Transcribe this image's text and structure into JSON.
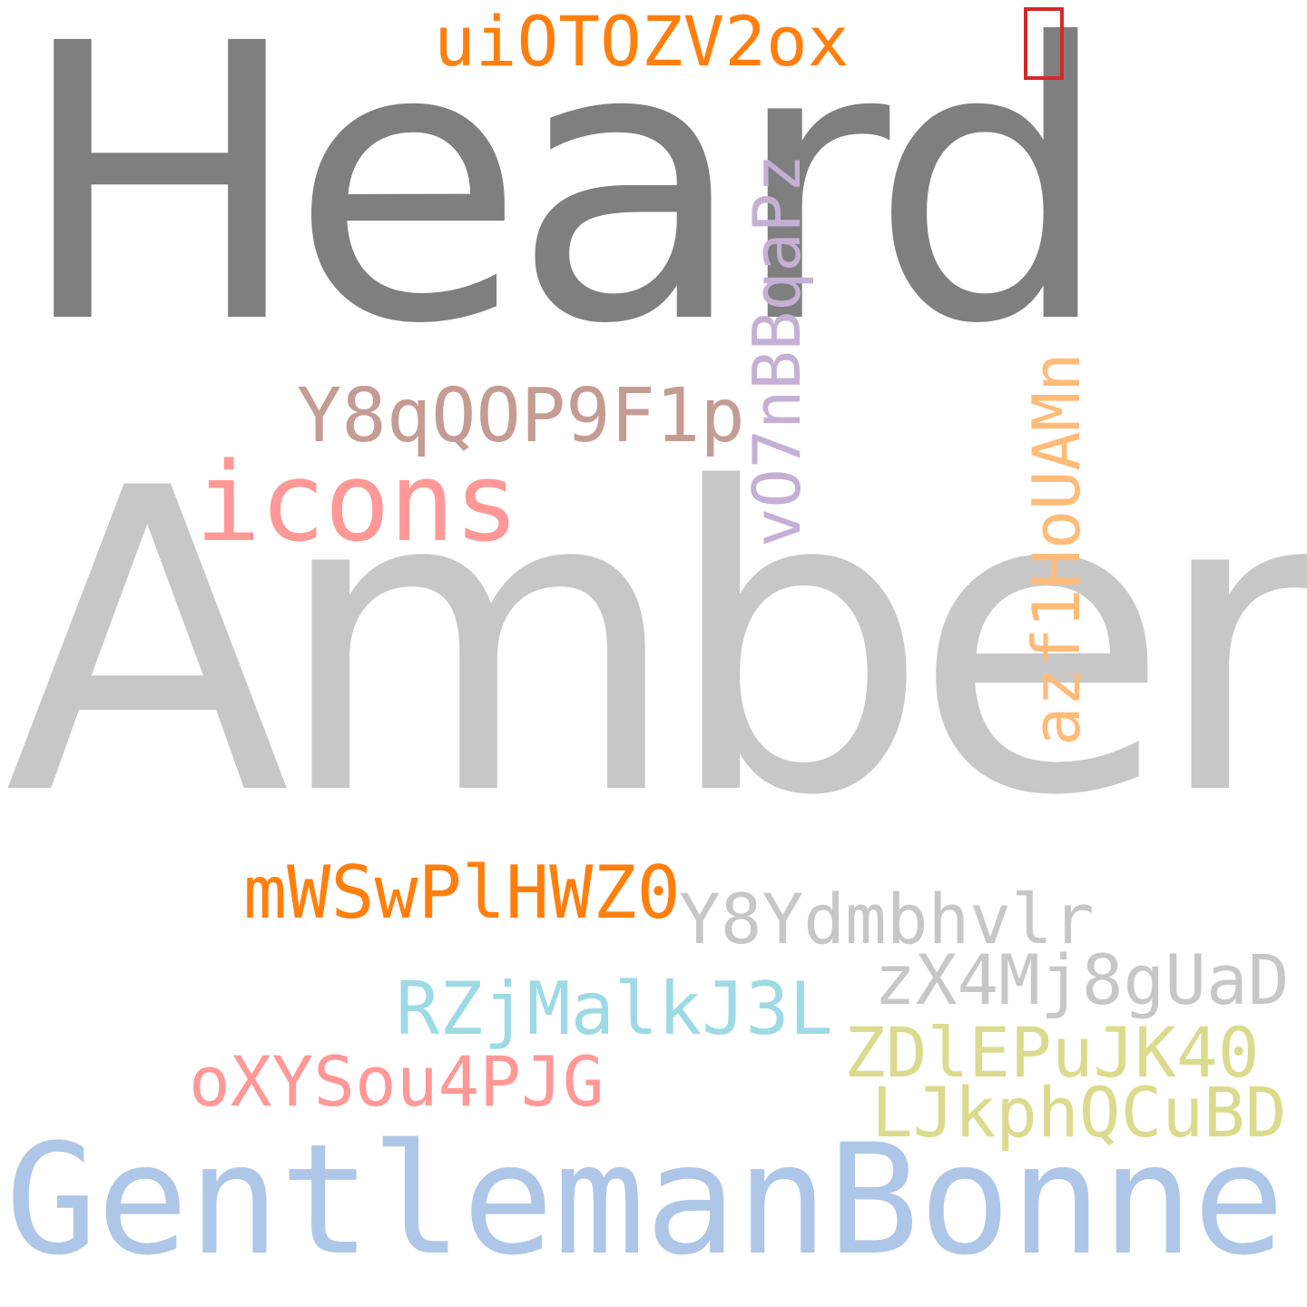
{
  "canvas": {
    "background": "#ffffff"
  },
  "words": {
    "heard": {
      "text": "Heard",
      "color": "#7f7f7f"
    },
    "amber": {
      "text": "Amber",
      "color": "#c7c7c7"
    },
    "gentleman": {
      "text": "GentlemanBonner",
      "color": "#aec7e8"
    },
    "icons": {
      "text": "icons",
      "color": "#ff9896"
    },
    "ui": {
      "text": "uiOTOZV2ox",
      "color": "#ff7f0e"
    },
    "y8q": {
      "text": "Y8qQOP9F1p",
      "color": "#c49c94"
    },
    "vbb": {
      "text": "vO7nBBqaPz",
      "color": "#c5b0d5"
    },
    "azf": {
      "text": "azf1HoUAMn",
      "color": "#ffbb78"
    },
    "mws": {
      "text": "mWSwPlHWZ0",
      "color": "#ff7f0e"
    },
    "y8y": {
      "text": "Y8Ydmbhvlr",
      "color": "#c7c7c7"
    },
    "zx4": {
      "text": "zX4Mj8gUaD",
      "color": "#c7c7c7"
    },
    "rzj": {
      "text": "RZjMalkJ3L",
      "color": "#9edae5"
    },
    "zdl": {
      "text": "ZDlEPuJK40",
      "color": "#dbdb8d"
    },
    "oxy": {
      "text": "oXYSou4PJG",
      "color": "#ff9896"
    },
    "ljk": {
      "text": "LJkphQCuBD",
      "color": "#dbdb8d"
    }
  },
  "missing_glyph": {
    "icon": "missing-glyph-box-icon",
    "color": "#d62728"
  }
}
